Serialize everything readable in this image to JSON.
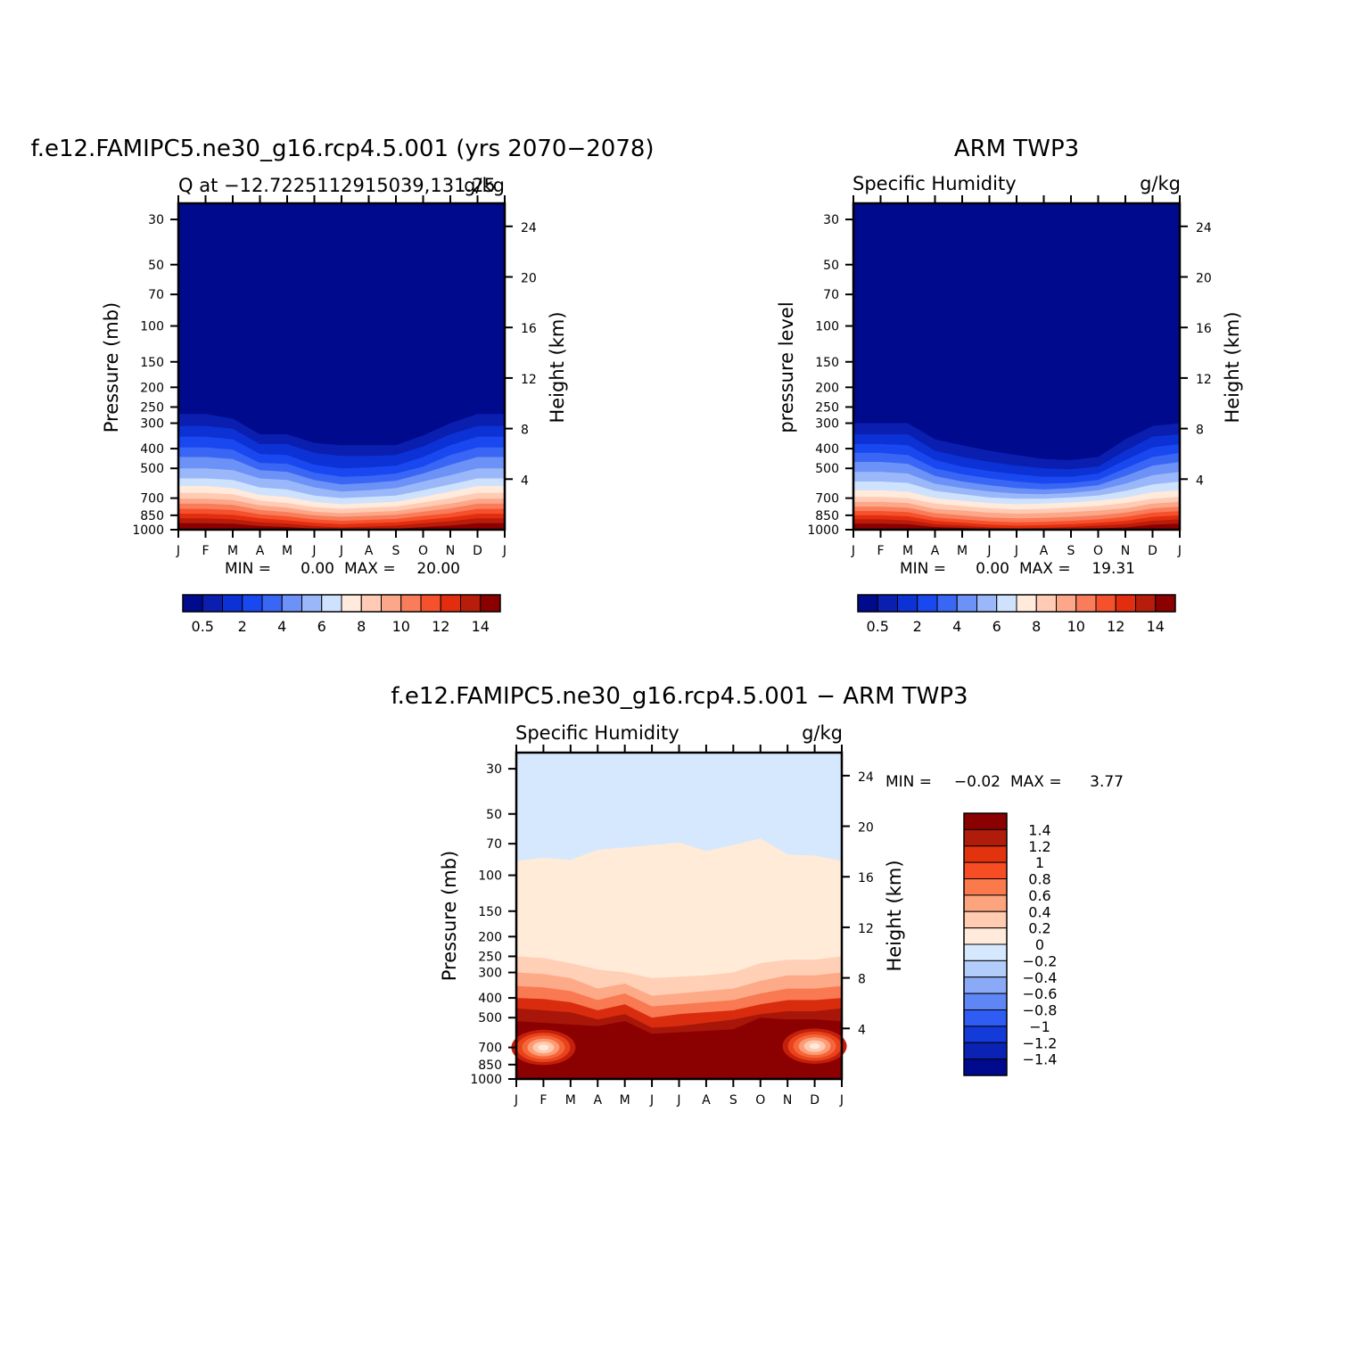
{
  "chart_data": [
    {
      "type": "contour",
      "title": "f.e12.FAMIPC5.ne30_g16.rcp4.5.001 (yrs 2070−2078)",
      "subtitle_left": "Q at −12.7225112915039,131.25",
      "subtitle_right": "g/kg",
      "ylabel": "Pressure (mb)",
      "ylabel_right": "Height (km)",
      "x_ticks": [
        "J",
        "F",
        "M",
        "A",
        "M",
        "J",
        "J",
        "A",
        "S",
        "O",
        "N",
        "D",
        "J"
      ],
      "y_ticks": [
        30,
        50,
        70,
        100,
        150,
        200,
        250,
        300,
        400,
        500,
        700,
        850,
        1000
      ],
      "y_ticks_right": [
        24,
        20,
        16,
        12,
        8,
        4
      ],
      "ylim": [
        1000,
        25
      ],
      "stats": {
        "min_label": "MIN =",
        "min": "0.00",
        "max_label": "MAX =",
        "max": "20.00"
      },
      "colorbar_labels": [
        "0.5",
        "2",
        "4",
        "6",
        "8",
        "10",
        "12",
        "14"
      ],
      "boundaries_mb": {
        "c0.5": [
          270,
          270,
          285,
          340,
          340,
          375,
          385,
          385,
          385,
          345,
          300,
          270,
          270
        ],
        "c1": [
          310,
          310,
          320,
          380,
          380,
          420,
          435,
          435,
          430,
          390,
          340,
          310,
          310
        ],
        "c2": [
          350,
          350,
          360,
          425,
          430,
          480,
          500,
          495,
          485,
          440,
          385,
          350,
          350
        ],
        "c3": [
          395,
          395,
          405,
          470,
          475,
          525,
          550,
          545,
          530,
          490,
          430,
          395,
          395
        ],
        "c4": [
          440,
          440,
          450,
          510,
          520,
          570,
          600,
          590,
          575,
          530,
          480,
          440,
          440
        ],
        "c5": [
          500,
          500,
          510,
          560,
          570,
          620,
          650,
          640,
          625,
          580,
          540,
          500,
          500
        ],
        "c6": [
          560,
          560,
          570,
          620,
          635,
          680,
          700,
          690,
          680,
          640,
          600,
          560,
          560
        ],
        "c7": [
          610,
          610,
          625,
          675,
          690,
          730,
          750,
          740,
          730,
          690,
          650,
          610,
          610
        ],
        "c8": [
          660,
          660,
          670,
          720,
          740,
          775,
          790,
          780,
          770,
          735,
          700,
          660,
          660
        ],
        "c9": [
          705,
          705,
          715,
          760,
          780,
          815,
          830,
          820,
          810,
          775,
          745,
          705,
          705
        ],
        "c10": [
          745,
          745,
          755,
          800,
          820,
          850,
          865,
          855,
          845,
          815,
          785,
          745,
          745
        ],
        "c11": [
          790,
          790,
          800,
          840,
          860,
          890,
          905,
          895,
          885,
          855,
          830,
          790,
          790
        ],
        "c12": [
          835,
          835,
          845,
          880,
          900,
          925,
          940,
          930,
          920,
          895,
          870,
          835,
          835
        ],
        "c13": [
          880,
          880,
          890,
          920,
          935,
          960,
          975,
          965,
          955,
          930,
          910,
          880,
          880
        ],
        "c14": [
          930,
          930,
          935,
          960,
          970,
          990,
          1000,
          995,
          990,
          970,
          955,
          930,
          930
        ]
      }
    },
    {
      "type": "contour",
      "title": "ARM TWP3",
      "subtitle_left": "Specific Humidity",
      "subtitle_right": "g/kg",
      "ylabel": "pressure level",
      "ylabel_right": "Height (km)",
      "x_ticks": [
        "J",
        "F",
        "M",
        "A",
        "M",
        "J",
        "J",
        "A",
        "S",
        "O",
        "N",
        "D",
        "J"
      ],
      "y_ticks": [
        30,
        50,
        70,
        100,
        150,
        200,
        250,
        300,
        400,
        500,
        700,
        850,
        1000
      ],
      "y_ticks_right": [
        24,
        20,
        16,
        12,
        8,
        4
      ],
      "ylim": [
        1000,
        25
      ],
      "stats": {
        "min_label": "MIN =",
        "min": "0.00",
        "max_label": "MAX =",
        "max": "19.31"
      },
      "colorbar_labels": [
        "0.5",
        "2",
        "4",
        "6",
        "8",
        "10",
        "12",
        "14"
      ],
      "boundaries_mb": {
        "c0.5": [
          300,
          300,
          300,
          360,
          385,
          410,
          430,
          450,
          455,
          440,
          360,
          310,
          300
        ],
        "c1": [
          340,
          340,
          340,
          410,
          440,
          465,
          485,
          500,
          505,
          490,
          410,
          350,
          340
        ],
        "c2": [
          380,
          380,
          385,
          455,
          490,
          515,
          535,
          550,
          550,
          530,
          455,
          395,
          380
        ],
        "c3": [
          420,
          420,
          430,
          500,
          535,
          560,
          580,
          595,
          590,
          570,
          500,
          440,
          420
        ],
        "c4": [
          465,
          465,
          475,
          545,
          580,
          605,
          625,
          635,
          625,
          605,
          545,
          485,
          465
        ],
        "c5": [
          520,
          520,
          530,
          595,
          625,
          650,
          665,
          670,
          660,
          640,
          595,
          540,
          520
        ],
        "c6": [
          580,
          580,
          590,
          645,
          670,
          695,
          705,
          705,
          695,
          680,
          645,
          600,
          580
        ],
        "c7": [
          640,
          640,
          650,
          700,
          720,
          740,
          750,
          745,
          735,
          720,
          695,
          655,
          640
        ],
        "c8": [
          690,
          690,
          700,
          745,
          765,
          785,
          795,
          790,
          780,
          765,
          740,
          705,
          690
        ],
        "c9": [
          730,
          730,
          740,
          790,
          805,
          825,
          835,
          830,
          820,
          805,
          785,
          745,
          730
        ],
        "c10": [
          770,
          770,
          780,
          830,
          850,
          870,
          880,
          875,
          865,
          850,
          825,
          785,
          770
        ],
        "c11": [
          810,
          810,
          820,
          870,
          890,
          910,
          920,
          915,
          905,
          890,
          865,
          825,
          810
        ],
        "c12": [
          850,
          850,
          860,
          905,
          925,
          945,
          955,
          950,
          940,
          925,
          905,
          865,
          850
        ],
        "c13": [
          890,
          890,
          900,
          940,
          955,
          975,
          985,
          980,
          970,
          955,
          940,
          905,
          890
        ],
        "c14": [
          935,
          935,
          940,
          970,
          980,
          995,
          1000,
          1000,
          995,
          985,
          975,
          945,
          935
        ]
      }
    },
    {
      "type": "contour",
      "title": "f.e12.FAMIPC5.ne30_g16.rcp4.5.001 − ARM TWP3",
      "subtitle_left": "Specific Humidity",
      "subtitle_right": "g/kg",
      "ylabel": "Pressure (mb)",
      "ylabel_right": "Height (km)",
      "x_ticks": [
        "J",
        "F",
        "M",
        "A",
        "M",
        "J",
        "J",
        "A",
        "S",
        "O",
        "N",
        "D",
        "J"
      ],
      "y_ticks": [
        30,
        50,
        70,
        100,
        150,
        200,
        250,
        300,
        400,
        500,
        700,
        850,
        1000
      ],
      "y_ticks_right": [
        24,
        20,
        16,
        12,
        8,
        4
      ],
      "ylim": [
        1000,
        25
      ],
      "stats": {
        "min_label": "MIN =",
        "min": "−0.02",
        "max_label": "MAX =",
        "max": "3.77"
      },
      "colorbar_labels": [
        "1.4",
        "1.2",
        "1",
        "0.8",
        "0.6",
        "0.4",
        "0.2",
        "0",
        "−0.2",
        "−0.4",
        "−0.6",
        "−0.8",
        "−1",
        "−1.2",
        "−1.4"
      ],
      "boundaries_mb": {
        "c0": [
          85,
          82,
          84,
          75,
          73,
          71,
          69,
          76,
          71,
          66,
          79,
          80,
          85
        ],
        "c0.2": [
          250,
          255,
          270,
          290,
          300,
          320,
          315,
          310,
          300,
          270,
          260,
          260,
          250
        ],
        "c0.4": [
          300,
          305,
          320,
          360,
          340,
          390,
          380,
          370,
          360,
          330,
          310,
          310,
          300
        ],
        "c0.6": [
          350,
          355,
          370,
          410,
          380,
          440,
          430,
          420,
          410,
          380,
          360,
          360,
          350
        ],
        "c0.8": [
          400,
          405,
          420,
          460,
          430,
          500,
          480,
          470,
          460,
          430,
          410,
          410,
          400
        ],
        "c1.2": [
          450,
          460,
          470,
          510,
          480,
          560,
          550,
          530,
          510,
          480,
          465,
          465,
          450
        ],
        "c1.4": [
          520,
          530,
          540,
          550,
          520,
          600,
          590,
          580,
          570,
          500,
          510,
          510,
          520
        ]
      },
      "hot_spots": [
        {
          "month": 1.0,
          "pressure_mb": 700,
          "value": "max"
        },
        {
          "month": 11.0,
          "pressure_mb": 690,
          "value": "max"
        }
      ]
    }
  ]
}
